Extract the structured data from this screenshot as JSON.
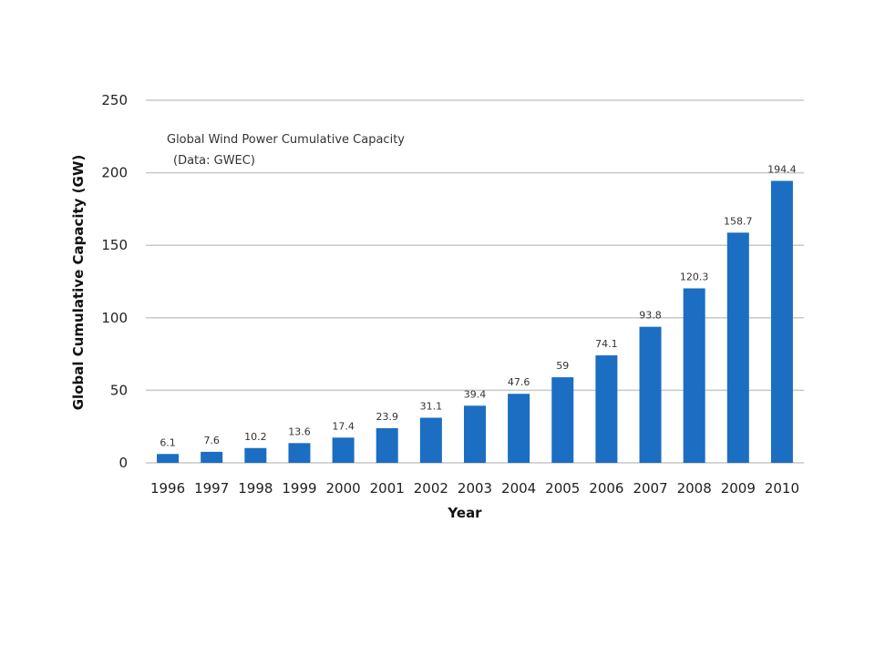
{
  "chart_data": {
    "type": "bar",
    "title": "Global Wind Power Cumulative Capacity",
    "subtitle": "(Data: GWEC)",
    "xlabel": "Year",
    "ylabel": "Global Cumulative Capacity (GW)",
    "categories": [
      "1996",
      "1997",
      "1998",
      "1999",
      "2000",
      "2001",
      "2002",
      "2003",
      "2004",
      "2005",
      "2006",
      "2007",
      "2008",
      "2009",
      "2010"
    ],
    "values": [
      6.1,
      7.6,
      10.2,
      13.6,
      17.4,
      23.9,
      31.1,
      39.4,
      47.6,
      59,
      74.1,
      93.8,
      120.3,
      158.7,
      194.4
    ],
    "data_labels": [
      "6.1",
      "7.6",
      "10.2",
      "13.6",
      "17.4",
      "23.9",
      "31.1",
      "39.4",
      "47.6",
      "59",
      "74.1",
      "93.8",
      "120.3",
      "158.7",
      "194.4"
    ],
    "ylim": [
      0,
      250
    ],
    "yticks": [
      0,
      50,
      100,
      150,
      200,
      250
    ],
    "grid": true,
    "bar_color": "#1b6ec2",
    "grid_color": "#c8c8c8"
  }
}
